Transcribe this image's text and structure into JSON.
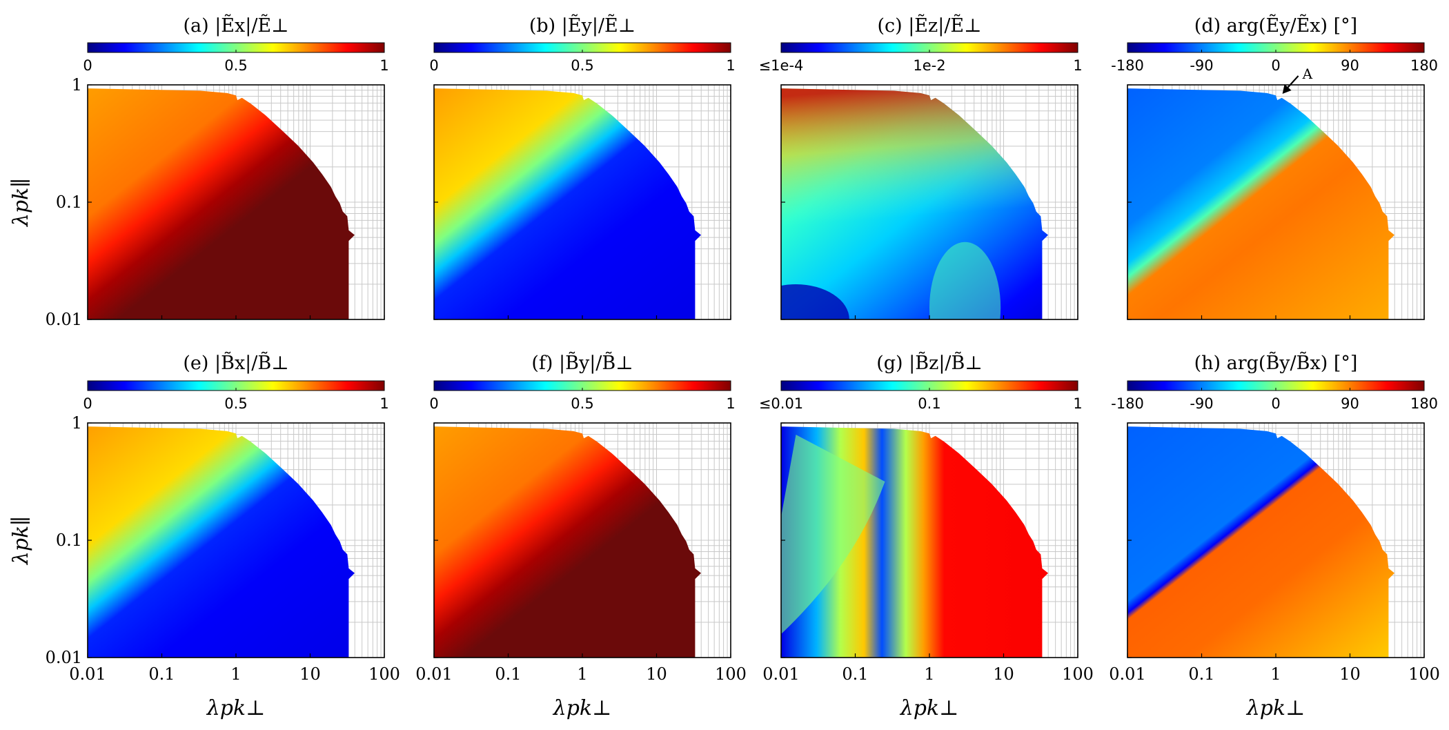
{
  "chart_data": [
    {
      "id": "a",
      "type": "heatmap",
      "title": "(a) |Ẽx|/Ẽ⊥",
      "colorbar": {
        "ticks": [
          "0",
          "0.5",
          "1"
        ],
        "range": [
          0,
          1
        ]
      },
      "pattern": "ex",
      "x_range": [
        0.01,
        100
      ],
      "y_range": [
        0.01,
        1
      ],
      "x_scale": "log",
      "y_scale": "log"
    },
    {
      "id": "b",
      "type": "heatmap",
      "title": "(b) |Ẽy|/Ẽ⊥",
      "colorbar": {
        "ticks": [
          "0",
          "0.5",
          "1"
        ],
        "range": [
          0,
          1
        ]
      },
      "pattern": "ey",
      "x_range": [
        0.01,
        100
      ],
      "y_range": [
        0.01,
        1
      ],
      "x_scale": "log",
      "y_scale": "log"
    },
    {
      "id": "c",
      "type": "heatmap",
      "title": "(c) |Ẽz|/Ẽ⊥",
      "colorbar": {
        "ticks": [
          "≤1e-4",
          "1e-2",
          "1"
        ],
        "range": [
          0.0001,
          1
        ],
        "scale": "log"
      },
      "pattern": "ez",
      "x_range": [
        0.01,
        100
      ],
      "y_range": [
        0.01,
        1
      ],
      "x_scale": "log",
      "y_scale": "log"
    },
    {
      "id": "d",
      "type": "heatmap",
      "title": "(d) arg(Ẽy/Ẽx) [°]",
      "colorbar": {
        "ticks": [
          "-180",
          "-90",
          "0",
          "90",
          "180"
        ],
        "range": [
          -180,
          180
        ]
      },
      "pattern": "phase",
      "x_range": [
        0.01,
        100
      ],
      "y_range": [
        0.01,
        1
      ],
      "x_scale": "log",
      "y_scale": "log",
      "annotation": "A"
    },
    {
      "id": "e",
      "type": "heatmap",
      "title": "(e) |B̃x|/B̃⊥",
      "colorbar": {
        "ticks": [
          "0",
          "0.5",
          "1"
        ],
        "range": [
          0,
          1
        ]
      },
      "pattern": "ey",
      "x_range": [
        0.01,
        100
      ],
      "y_range": [
        0.01,
        1
      ],
      "x_scale": "log",
      "y_scale": "log"
    },
    {
      "id": "f",
      "type": "heatmap",
      "title": "(f) |B̃y|/B̃⊥",
      "colorbar": {
        "ticks": [
          "0",
          "0.5",
          "1"
        ],
        "range": [
          0,
          1
        ]
      },
      "pattern": "ex",
      "x_range": [
        0.01,
        100
      ],
      "y_range": [
        0.01,
        1
      ],
      "x_scale": "log",
      "y_scale": "log"
    },
    {
      "id": "g",
      "type": "heatmap",
      "title": "(g) |B̃z|/B̃⊥",
      "colorbar": {
        "ticks": [
          "≤0.01",
          "0.1",
          "1"
        ],
        "range": [
          0.01,
          1
        ],
        "scale": "log"
      },
      "pattern": "bz",
      "x_range": [
        0.01,
        100
      ],
      "y_range": [
        0.01,
        1
      ],
      "x_scale": "log",
      "y_scale": "log"
    },
    {
      "id": "h",
      "type": "heatmap",
      "title": "(h) arg(B̃y/B̃x) [°]",
      "colorbar": {
        "ticks": [
          "-180",
          "-90",
          "0",
          "90",
          "180"
        ],
        "range": [
          -180,
          180
        ]
      },
      "pattern": "phase2",
      "x_range": [
        0.01,
        100
      ],
      "y_range": [
        0.01,
        1
      ],
      "x_scale": "log",
      "y_scale": "log"
    }
  ],
  "axes": {
    "x_label": "λpk⊥",
    "y_label": "λpk∥",
    "x_ticks": [
      "0.01",
      "0.1",
      "1",
      "10",
      "100"
    ],
    "y_ticks": [
      "0.01",
      "0.1",
      "1"
    ]
  },
  "colormap": "jet"
}
